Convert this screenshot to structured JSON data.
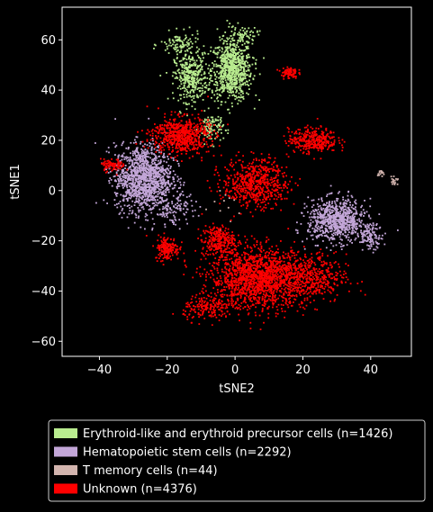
{
  "chart_data": {
    "type": "scatter",
    "title": "",
    "xlabel": "tSNE2",
    "ylabel": "tSNE1",
    "xlim": [
      -51,
      52
    ],
    "ylim": [
      -66,
      73
    ],
    "xticks": [
      -40,
      -20,
      0,
      20,
      40
    ],
    "yticks": [
      -60,
      -40,
      -20,
      0,
      20,
      40,
      60
    ],
    "grid": false,
    "background": "#000000",
    "legend_position": "bottom-outside",
    "series": [
      {
        "name": "Erythroid-like and erythroid precursor cells (n=1426)",
        "color": "#b9ec8f",
        "count": 1426,
        "clusters": [
          {
            "center": [
              -1,
              48
            ],
            "spread": [
              5,
              10
            ],
            "fraction": 0.55
          },
          {
            "center": [
              -13,
              45
            ],
            "spread": [
              4,
              8
            ],
            "fraction": 0.25
          },
          {
            "center": [
              -7,
              25
            ],
            "spread": [
              3,
              5
            ],
            "fraction": 0.08
          },
          {
            "center": [
              -16,
              58
            ],
            "spread": [
              5,
              4
            ],
            "fraction": 0.07
          },
          {
            "center": [
              2,
              62
            ],
            "spread": [
              4,
              3
            ],
            "fraction": 0.05
          }
        ]
      },
      {
        "name": "Hematopoietic stem cells (n=2292)",
        "color": "#c3a6d8",
        "count": 2292,
        "clusters": [
          {
            "center": [
              -27,
              5
            ],
            "spread": [
              7,
              11
            ],
            "fraction": 0.55
          },
          {
            "center": [
              30,
              -12
            ],
            "spread": [
              7,
              7
            ],
            "fraction": 0.35
          },
          {
            "center": [
              -18,
              -8
            ],
            "spread": [
              5,
              5
            ],
            "fraction": 0.05
          },
          {
            "center": [
              40,
              -18
            ],
            "spread": [
              3,
              4
            ],
            "fraction": 0.05
          }
        ]
      },
      {
        "name": "T memory cells (n=44)",
        "color": "#d2b4ae",
        "count": 44,
        "clusters": [
          {
            "center": [
              47,
              4
            ],
            "spread": [
              1,
              2
            ],
            "fraction": 0.4
          },
          {
            "center": [
              43,
              7
            ],
            "spread": [
              1,
              1
            ],
            "fraction": 0.3
          },
          {
            "center": [
              -2,
              -6
            ],
            "spread": [
              6,
              6
            ],
            "fraction": 0.3
          }
        ]
      },
      {
        "name": "Unknown (n=4376)",
        "color": "#ff0000",
        "count": 4376,
        "clusters": [
          {
            "center": [
              7,
              -35
            ],
            "spread": [
              12,
              10
            ],
            "fraction": 0.35
          },
          {
            "center": [
              -16,
              22
            ],
            "spread": [
              7,
              6
            ],
            "fraction": 0.15
          },
          {
            "center": [
              6,
              3
            ],
            "spread": [
              8,
              8
            ],
            "fraction": 0.14
          },
          {
            "center": [
              22,
              -35
            ],
            "spread": [
              9,
              8
            ],
            "fraction": 0.1
          },
          {
            "center": [
              -20,
              -23
            ],
            "spread": [
              3,
              4
            ],
            "fraction": 0.04
          },
          {
            "center": [
              -5,
              -20
            ],
            "spread": [
              4,
              5
            ],
            "fraction": 0.06
          },
          {
            "center": [
              23,
              20
            ],
            "spread": [
              6,
              4
            ],
            "fraction": 0.08
          },
          {
            "center": [
              16,
              47
            ],
            "spread": [
              2,
              2
            ],
            "fraction": 0.02
          },
          {
            "center": [
              -36,
              10
            ],
            "spread": [
              3,
              2
            ],
            "fraction": 0.02
          },
          {
            "center": [
              -8,
              -47
            ],
            "spread": [
              6,
              4
            ],
            "fraction": 0.04
          }
        ]
      }
    ]
  }
}
